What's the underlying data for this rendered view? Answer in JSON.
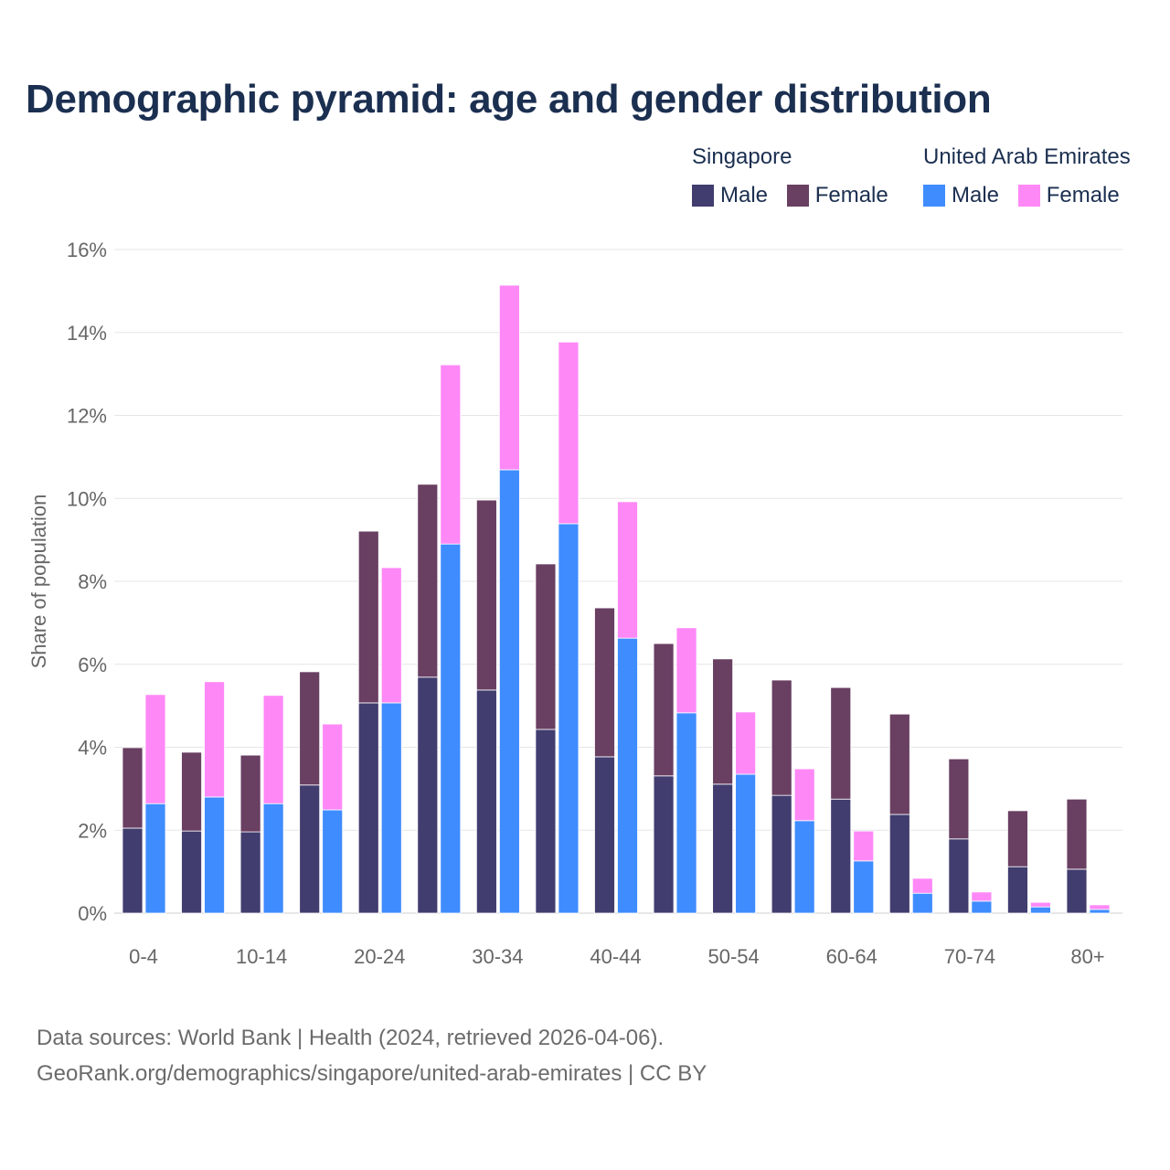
{
  "title": "Demographic pyramid: age and gender distribution",
  "legend": {
    "groups": [
      {
        "name": "Singapore",
        "items": [
          {
            "label": "Male",
            "color": "#413d6f"
          },
          {
            "label": "Female",
            "color": "#693f62"
          }
        ]
      },
      {
        "name": "United Arab Emirates",
        "items": [
          {
            "label": "Male",
            "color": "#3f8cff"
          },
          {
            "label": "Female",
            "color": "#ff88f7"
          }
        ]
      }
    ]
  },
  "footer": {
    "line1": "Data sources: World Bank | Health (2024, retrieved 2026-04-06).",
    "line2": "GeoRank.org/demographics/singapore/united-arab-emirates | CC BY"
  },
  "chart_data": {
    "type": "bar",
    "stacked": true,
    "title": "Demographic pyramid: age and gender distribution",
    "xlabel": "",
    "ylabel": "Share of population",
    "ylim": [
      0,
      16
    ],
    "yticks": [
      "0%",
      "2%",
      "4%",
      "6%",
      "8%",
      "10%",
      "12%",
      "14%",
      "16%"
    ],
    "grid": true,
    "legend_position": "top-right",
    "categories": [
      "0-4",
      "5-9",
      "10-14",
      "15-19",
      "20-24",
      "25-29",
      "30-34",
      "35-39",
      "40-44",
      "45-49",
      "50-54",
      "55-59",
      "60-64",
      "65-69",
      "70-74",
      "75-79",
      "80+"
    ],
    "xtick_labels_shown": [
      "0-4",
      "10-14",
      "20-24",
      "30-34",
      "40-44",
      "50-54",
      "60-64",
      "70-74",
      "80+"
    ],
    "series": [
      {
        "name": "Singapore Male",
        "country": "Singapore",
        "stack": 0,
        "color": "#413d6f",
        "values": [
          2.05,
          1.98,
          1.96,
          3.09,
          5.07,
          5.69,
          5.38,
          4.43,
          3.77,
          3.31,
          3.11,
          2.84,
          2.75,
          2.38,
          1.79,
          1.12,
          1.06
        ]
      },
      {
        "name": "Singapore Female",
        "country": "Singapore",
        "stack": 0,
        "color": "#693f62",
        "values": [
          1.94,
          1.9,
          1.85,
          2.73,
          4.14,
          4.65,
          4.58,
          3.99,
          3.59,
          3.19,
          3.02,
          2.78,
          2.69,
          2.42,
          1.93,
          1.35,
          1.69
        ]
      },
      {
        "name": "United Arab Emirates Male",
        "country": "United Arab Emirates",
        "stack": 1,
        "color": "#3f8cff",
        "values": [
          2.64,
          2.8,
          2.64,
          2.49,
          5.07,
          8.9,
          10.69,
          9.39,
          6.63,
          4.83,
          3.35,
          2.23,
          1.26,
          0.48,
          0.29,
          0.15,
          0.09
        ]
      },
      {
        "name": "United Arab Emirates Female",
        "country": "United Arab Emirates",
        "stack": 1,
        "color": "#ff88f7",
        "values": [
          2.63,
          2.78,
          2.61,
          2.07,
          3.26,
          4.32,
          4.45,
          4.38,
          3.29,
          2.05,
          1.5,
          1.25,
          0.72,
          0.36,
          0.22,
          0.11,
          0.11
        ]
      }
    ]
  }
}
